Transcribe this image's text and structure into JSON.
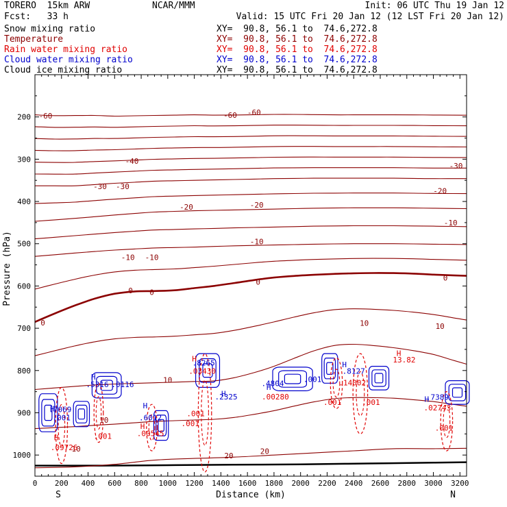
{
  "header": {
    "model": "TORERO  15km ARW",
    "center": "NCAR/MMM",
    "init": "Init: 06 UTC Thu 19 Jan 12",
    "fcst": "Fcst:   33 h",
    "valid": "Valid: 15 UTC Fri 20 Jan 12 (12 LST Fri 20 Jan 12)"
  },
  "fields": [
    {
      "label": "Snow mixing ratio",
      "xy": "XY=  90.8, 56.1 to  74.6,272.8",
      "color": "#000000"
    },
    {
      "label": "Temperature",
      "xy": "XY=  90.8, 56.1 to  74.6,272.8",
      "color": "#8b0000"
    },
    {
      "label": "Rain water mixing ratio",
      "xy": "XY=  90.8, 56.1 to  74.6,272.8",
      "color": "#e00000"
    },
    {
      "label": "Cloud water mixing ratio",
      "xy": "XY=  90.8, 56.1 to  74.6,272.8",
      "color": "#0000cc"
    },
    {
      "label": "Cloud ice mixing ratio",
      "xy": "XY=  90.8, 56.1 to  74.6,272.8",
      "color": "#000000"
    }
  ],
  "chart_data": {
    "type": "contour cross-section",
    "xlabel": "Distance (km)",
    "ylabel": "Pressure (hPa)",
    "xlim": [
      0,
      3250
    ],
    "ylim": [
      1050,
      100
    ],
    "x_ticks": [
      0,
      200,
      400,
      600,
      800,
      1000,
      1200,
      1400,
      1600,
      1800,
      2000,
      2200,
      2400,
      2600,
      2800,
      3000,
      3200
    ],
    "y_ticks": [
      200,
      300,
      400,
      500,
      600,
      700,
      800,
      900,
      1000
    ],
    "endpoints": {
      "left": "S",
      "right": "N"
    },
    "colors": {
      "temperature": "#8b0000",
      "rain": "#e00000",
      "cloud_water": "#0000cc",
      "ground": "#000000"
    },
    "temperature_contours": [
      {
        "value": -60,
        "points": [
          [
            0,
            195
          ],
          [
            100,
            197
          ],
          [
            250,
            197
          ],
          [
            400,
            196
          ],
          [
            600,
            198
          ],
          [
            800,
            197
          ],
          [
            1000,
            196
          ],
          [
            1200,
            195
          ],
          [
            1400,
            196
          ],
          [
            1600,
            195
          ],
          [
            1800,
            194
          ],
          [
            2000,
            194
          ],
          [
            2200,
            195
          ],
          [
            2500,
            195
          ],
          [
            2800,
            195
          ],
          [
            3250,
            196
          ]
        ]
      },
      {
        "value": -30,
        "points": [
          [
            0,
            363
          ],
          [
            300,
            363
          ],
          [
            600,
            357
          ],
          [
            900,
            352
          ],
          [
            1200,
            350
          ],
          [
            1500,
            348
          ],
          [
            1800,
            346
          ],
          [
            2100,
            345
          ],
          [
            2400,
            345
          ],
          [
            2700,
            345
          ],
          [
            3000,
            346
          ],
          [
            3250,
            346
          ]
        ]
      },
      {
        "value": -20,
        "points": [
          [
            0,
            447
          ],
          [
            300,
            440
          ],
          [
            600,
            432
          ],
          [
            900,
            425
          ],
          [
            1200,
            422
          ],
          [
            1500,
            420
          ],
          [
            1800,
            418
          ],
          [
            2100,
            416
          ],
          [
            2400,
            415
          ],
          [
            2700,
            415
          ],
          [
            3000,
            416
          ],
          [
            3250,
            417
          ]
        ]
      },
      {
        "value": -10,
        "points": [
          [
            0,
            530
          ],
          [
            300,
            522
          ],
          [
            600,
            515
          ],
          [
            900,
            510
          ],
          [
            1200,
            508
          ],
          [
            1500,
            505
          ],
          [
            1800,
            503
          ],
          [
            2100,
            501
          ],
          [
            2400,
            500
          ],
          [
            2700,
            500
          ],
          [
            3000,
            501
          ],
          [
            3250,
            502
          ]
        ]
      },
      {
        "value": 0,
        "points": [
          [
            0,
            685
          ],
          [
            150,
            665
          ],
          [
            350,
            640
          ],
          [
            500,
            625
          ],
          [
            650,
            615
          ],
          [
            800,
            612
          ],
          [
            1000,
            612
          ],
          [
            1200,
            605
          ],
          [
            1400,
            598
          ],
          [
            1600,
            588
          ],
          [
            1800,
            580
          ],
          [
            2000,
            575
          ],
          [
            2200,
            572
          ],
          [
            2400,
            570
          ],
          [
            2600,
            569
          ],
          [
            2800,
            570
          ],
          [
            3000,
            573
          ],
          [
            3250,
            576
          ]
        ]
      },
      {
        "value": 10,
        "points": [
          [
            0,
            845
          ],
          [
            200,
            840
          ],
          [
            400,
            835
          ],
          [
            600,
            832
          ],
          [
            800,
            830
          ],
          [
            1000,
            828
          ],
          [
            1200,
            826
          ],
          [
            1400,
            824
          ],
          [
            1600,
            810
          ],
          [
            1800,
            790
          ],
          [
            2000,
            765
          ],
          [
            2200,
            742
          ],
          [
            2400,
            738
          ],
          [
            2600,
            742
          ],
          [
            2800,
            750
          ],
          [
            3000,
            762
          ],
          [
            3250,
            785
          ]
        ]
      },
      {
        "value": 20,
        "points": [
          [
            0,
            1030
          ],
          [
            300,
            1028
          ],
          [
            600,
            1022
          ],
          [
            900,
            1012
          ],
          [
            1200,
            1008
          ],
          [
            1500,
            1005
          ],
          [
            1800,
            1000
          ],
          [
            2100,
            995
          ],
          [
            2400,
            990
          ],
          [
            2700,
            985
          ],
          [
            3000,
            985
          ],
          [
            3250,
            984
          ]
        ]
      }
    ],
    "ground": [
      [
        0,
        1025
      ],
      [
        500,
        1025
      ],
      [
        1000,
        1024
      ],
      [
        1500,
        1023
      ],
      [
        2000,
        1022
      ],
      [
        2500,
        1020
      ],
      [
        3000,
        1018
      ],
      [
        3250,
        1017
      ]
    ],
    "labels": [
      {
        "text": "-60",
        "x": 80,
        "p": 197,
        "color": "#8b0000"
      },
      {
        "text": "-60",
        "x": 1470,
        "p": 196,
        "color": "#8b0000"
      },
      {
        "text": "-60",
        "x": 1650,
        "p": 189,
        "color": "#8b0000"
      },
      {
        "text": "-40",
        "x": 730,
        "p": 304,
        "color": "#8b0000"
      },
      {
        "text": "-30",
        "x": 3170,
        "p": 316,
        "color": "#8b0000"
      },
      {
        "text": "-30",
        "x": 490,
        "p": 364,
        "color": "#8b0000"
      },
      {
        "text": "-30",
        "x": 660,
        "p": 364,
        "color": "#8b0000"
      },
      {
        "text": "-20",
        "x": 3050,
        "p": 375,
        "color": "#8b0000"
      },
      {
        "text": "-20",
        "x": 1140,
        "p": 413,
        "color": "#8b0000"
      },
      {
        "text": "-20",
        "x": 1670,
        "p": 408,
        "color": "#8b0000"
      },
      {
        "text": "-10",
        "x": 3130,
        "p": 450,
        "color": "#8b0000"
      },
      {
        "text": "-10",
        "x": 1670,
        "p": 495,
        "color": "#8b0000"
      },
      {
        "text": "-10",
        "x": 700,
        "p": 532,
        "color": "#8b0000"
      },
      {
        "text": "-10",
        "x": 880,
        "p": 532,
        "color": "#8b0000"
      },
      {
        "text": "0",
        "x": 1680,
        "p": 590,
        "color": "#8b0000"
      },
      {
        "text": "0",
        "x": 3090,
        "p": 581,
        "color": "#8b0000"
      },
      {
        "text": "0",
        "x": 720,
        "p": 611,
        "color": "#8b0000"
      },
      {
        "text": "0",
        "x": 880,
        "p": 615,
        "color": "#8b0000"
      },
      {
        "text": "0",
        "x": 60,
        "p": 687,
        "color": "#8b0000"
      },
      {
        "text": "10",
        "x": 2480,
        "p": 688,
        "color": "#8b0000"
      },
      {
        "text": "10",
        "x": 3050,
        "p": 695,
        "color": "#8b0000"
      },
      {
        "text": "10",
        "x": 1000,
        "p": 822,
        "color": "#8b0000"
      },
      {
        "text": "10",
        "x": 520,
        "p": 917,
        "color": "#8b0000"
      },
      {
        "text": "10",
        "x": 310,
        "p": 985,
        "color": "#8b0000"
      },
      {
        "text": "20",
        "x": 1460,
        "p": 1001,
        "color": "#8b0000"
      },
      {
        "text": "20",
        "x": 1730,
        "p": 991,
        "color": "#8b0000"
      },
      {
        "text": "H",
        "x": 2740,
        "p": 759,
        "color": "#e00000"
      },
      {
        "text": "13.82",
        "x": 2780,
        "p": 774,
        "color": "#e00000"
      },
      {
        "text": "H",
        "x": 1200,
        "p": 772,
        "color": "#e00000"
      },
      {
        "text": ".8265",
        "x": 1270,
        "p": 782,
        "color": "#0000cc"
      },
      {
        "text": ".03430",
        "x": 1260,
        "p": 801,
        "color": "#e00000"
      },
      {
        "text": "H",
        "x": 2330,
        "p": 786,
        "color": "#0000cc"
      },
      {
        "text": ".8127",
        "x": 2400,
        "p": 801,
        "color": "#0000cc"
      },
      {
        "text": ".14002",
        "x": 2390,
        "p": 829,
        "color": "#e00000"
      },
      {
        "text": "H",
        "x": 1420,
        "p": 855,
        "color": "#0000cc"
      },
      {
        "text": ".2325",
        "x": 1440,
        "p": 862,
        "color": "#0000cc"
      },
      {
        "text": "H",
        "x": 1760,
        "p": 839,
        "color": "#0000cc"
      },
      {
        "text": ".4804",
        "x": 1790,
        "p": 830,
        "color": "#0000cc"
      },
      {
        "text": ".00280",
        "x": 1810,
        "p": 862,
        "color": "#e00000"
      },
      {
        "text": ".001",
        "x": 2090,
        "p": 821,
        "color": "#0000cc"
      },
      {
        "text": "H",
        "x": 440,
        "p": 815,
        "color": "#0000cc"
      },
      {
        "text": ".5316",
        "x": 470,
        "p": 833,
        "color": "#0000cc"
      },
      {
        "text": ".0116",
        "x": 660,
        "p": 833,
        "color": "#0000cc"
      },
      {
        "text": "H",
        "x": 130,
        "p": 890,
        "color": "#0000cc"
      },
      {
        "text": ".7069",
        "x": 190,
        "p": 892,
        "color": "#0000cc"
      },
      {
        "text": ".001",
        "x": 200,
        "p": 911,
        "color": "#0000cc"
      },
      {
        "text": "H",
        "x": 830,
        "p": 883,
        "color": "#0000cc"
      },
      {
        "text": ".6012",
        "x": 870,
        "p": 911,
        "color": "#0000cc"
      },
      {
        "text": "H",
        "x": 810,
        "p": 932,
        "color": "#e00000"
      },
      {
        "text": ".00545",
        "x": 870,
        "p": 949,
        "color": "#e00000"
      },
      {
        "text": ".001",
        "x": 1210,
        "p": 902,
        "color": "#e00000"
      },
      {
        "text": ".001",
        "x": 1170,
        "p": 925,
        "color": "#e00000"
      },
      {
        "text": ".001",
        "x": 510,
        "p": 955,
        "color": "#e00000"
      },
      {
        "text": "H",
        "x": 160,
        "p": 958,
        "color": "#e00000"
      },
      {
        "text": ".09726",
        "x": 220,
        "p": 982,
        "color": "#e00000"
      },
      {
        "text": ".001",
        "x": 2240,
        "p": 875,
        "color": "#e00000"
      },
      {
        "text": ".001",
        "x": 2530,
        "p": 875,
        "color": "#e00000"
      },
      {
        "text": ".001",
        "x": 3080,
        "p": 936,
        "color": "#e00000"
      },
      {
        "text": "H",
        "x": 2950,
        "p": 868,
        "color": "#0000cc"
      },
      {
        "text": ".7389",
        "x": 3030,
        "p": 863,
        "color": "#0000cc"
      },
      {
        "text": ".02743",
        "x": 3030,
        "p": 888,
        "color": "#e00000"
      }
    ],
    "cloud_water_blobs": [
      {
        "x": 100,
        "p": 900,
        "rx": 70,
        "rp": 45
      },
      {
        "x": 350,
        "p": 903,
        "rx": 60,
        "rp": 30
      },
      {
        "x": 540,
        "p": 835,
        "rx": 110,
        "rp": 30
      },
      {
        "x": 950,
        "p": 930,
        "rx": 55,
        "rp": 35
      },
      {
        "x": 1300,
        "p": 800,
        "rx": 90,
        "rp": 40
      },
      {
        "x": 1940,
        "p": 820,
        "rx": 150,
        "rp": 28
      },
      {
        "x": 2220,
        "p": 795,
        "rx": 60,
        "rp": 35
      },
      {
        "x": 2590,
        "p": 818,
        "rx": 75,
        "rp": 28
      },
      {
        "x": 3180,
        "p": 852,
        "rx": 90,
        "rp": 28
      }
    ],
    "rain_blobs": [
      {
        "x": 200,
        "p": 930,
        "rx": 45,
        "rp": 90
      },
      {
        "x": 480,
        "p": 900,
        "rx": 35,
        "rp": 70
      },
      {
        "x": 880,
        "p": 935,
        "rx": 40,
        "rp": 55
      },
      {
        "x": 1280,
        "p": 900,
        "rx": 50,
        "rp": 140
      },
      {
        "x": 2270,
        "p": 830,
        "rx": 45,
        "rp": 60
      },
      {
        "x": 2450,
        "p": 855,
        "rx": 55,
        "rp": 95
      },
      {
        "x": 3100,
        "p": 920,
        "rx": 45,
        "rp": 70
      }
    ]
  }
}
